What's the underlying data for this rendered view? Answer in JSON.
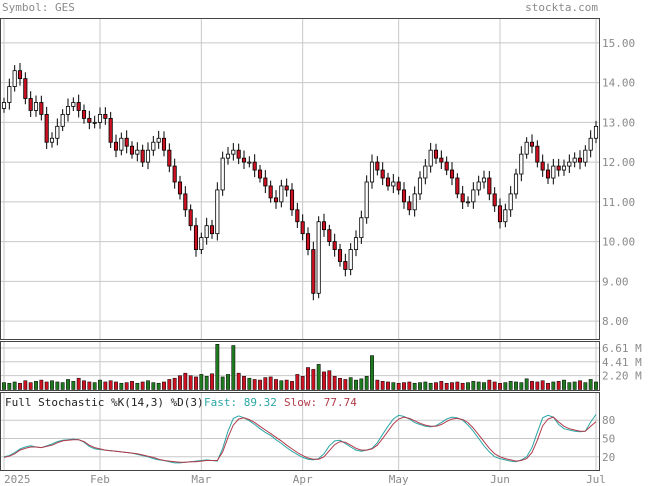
{
  "header": {
    "symbol_text": "Symbol: GES",
    "brand": "stockta.com"
  },
  "colors": {
    "up": "#ffffff",
    "down": "#cc1122",
    "vol_up": "#1f7a1f",
    "vol_down": "#cc1122",
    "grid": "#c8c8c8",
    "label": "#8a8a8a",
    "fast": "#2aa6a6",
    "slow": "#b23a4a",
    "text": "#222222"
  },
  "chart_data": [
    {
      "type": "candlestick",
      "title": "Symbol: GES",
      "x_labels": [
        "Jan 2025",
        "Feb",
        "Mar",
        "Apr",
        "May",
        "Jun",
        "Jul"
      ],
      "y_ticks": [
        "15.00",
        "14.00",
        "13.00",
        "12.00",
        "11.00",
        "10.00",
        "9.00",
        "8.00"
      ],
      "y_range": [
        7.55,
        15.6
      ],
      "grid": true,
      "closes": [
        13.5,
        13.9,
        14.3,
        14.1,
        13.6,
        13.3,
        13.5,
        13.2,
        12.5,
        12.6,
        12.9,
        13.2,
        13.4,
        13.5,
        13.3,
        13.1,
        13.0,
        13.0,
        13.2,
        13.1,
        12.5,
        12.3,
        12.6,
        12.4,
        12.2,
        12.3,
        12.0,
        12.3,
        12.5,
        12.6,
        12.3,
        11.9,
        11.5,
        11.2,
        10.8,
        10.4,
        9.8,
        10.1,
        10.4,
        10.2,
        11.3,
        12.1,
        12.2,
        12.3,
        12.1,
        12.0,
        12.0,
        11.8,
        11.6,
        11.4,
        11.1,
        11.0,
        11.4,
        11.3,
        10.8,
        10.5,
        10.2,
        9.8,
        8.7,
        10.5,
        10.3,
        10.0,
        9.8,
        9.5,
        9.3,
        9.8,
        10.1,
        10.6,
        11.5,
        12.0,
        11.8,
        11.6,
        11.4,
        11.5,
        11.3,
        11.0,
        10.8,
        11.2,
        11.6,
        11.9,
        12.3,
        12.1,
        12.0,
        11.8,
        11.6,
        11.2,
        11.0,
        11.0,
        11.3,
        11.5,
        11.6,
        11.2,
        10.9,
        10.5,
        10.8,
        11.2,
        11.7,
        12.2,
        12.5,
        12.4,
        12.0,
        11.8,
        11.6,
        11.9,
        11.8,
        11.9,
        12.0,
        12.1,
        12.0,
        12.3,
        12.6,
        12.9
      ]
    },
    {
      "type": "bar",
      "title": "",
      "y_ticks": [
        "6.61 M",
        "4.41 M",
        "2.20 M"
      ],
      "y_values_m": [
        6.61,
        4.41,
        2.2
      ],
      "grid": true,
      "volumes_m": [
        1.1,
        1.0,
        1.2,
        1.0,
        1.4,
        1.1,
        1.3,
        1.5,
        1.2,
        1.4,
        1.2,
        1.1,
        1.6,
        1.3,
        1.8,
        1.4,
        1.2,
        1.1,
        1.5,
        1.2,
        1.4,
        1.2,
        1.0,
        1.1,
        1.3,
        1.0,
        1.2,
        1.4,
        1.1,
        1.0,
        1.2,
        1.6,
        1.8,
        2.2,
        2.6,
        2.2,
        2.0,
        2.4,
        2.1,
        2.5,
        7.2,
        2.0,
        2.4,
        7.0,
        2.6,
        2.1,
        1.8,
        1.6,
        1.5,
        1.9,
        2.0,
        1.6,
        1.4,
        1.5,
        1.3,
        2.4,
        2.1,
        3.5,
        3.2,
        4.0,
        2.8,
        3.0,
        2.1,
        1.8,
        1.6,
        1.9,
        1.5,
        1.7,
        2.1,
        5.4,
        1.5,
        1.3,
        1.2,
        1.1,
        1.0,
        1.1,
        1.2,
        1.0,
        1.1,
        1.2,
        1.0,
        1.1,
        1.3,
        1.0,
        1.1,
        1.2,
        1.0,
        1.1,
        1.3,
        1.2,
        1.1,
        1.5,
        1.2,
        1.0,
        1.1,
        1.3,
        1.2,
        1.1,
        1.7,
        1.3,
        1.2,
        1.4,
        1.0,
        1.2,
        1.3,
        1.5,
        1.1,
        1.2,
        1.4,
        1.1,
        1.6,
        1.2
      ]
    },
    {
      "type": "line",
      "title": "Full Stochastic %K(14,3) %D(3)",
      "fast_label": "Fast: 89.32",
      "slow_label": "Slow: 77.74",
      "y_ticks": [
        "80",
        "50",
        "20"
      ],
      "ylim": [
        0,
        100
      ],
      "series": [
        {
          "name": "Fast",
          "values": [
            20,
            22,
            27,
            33,
            36,
            38,
            36,
            35,
            38,
            41,
            45,
            47,
            48,
            49,
            48,
            44,
            37,
            33,
            32,
            31,
            30,
            29,
            28,
            27,
            26,
            24,
            22,
            20,
            17,
            15,
            14,
            12,
            10,
            10,
            11,
            12,
            13,
            14,
            15,
            14,
            13,
            34,
            62,
            83,
            87,
            84,
            79,
            73,
            66,
            60,
            55,
            48,
            42,
            35,
            29,
            24,
            19,
            16,
            15,
            17,
            25,
            38,
            46,
            47,
            42,
            36,
            31,
            29,
            31,
            34,
            43,
            57,
            70,
            82,
            88,
            86,
            82,
            76,
            73,
            70,
            69,
            71,
            76,
            82,
            85,
            84,
            80,
            72,
            62,
            50,
            38,
            28,
            20,
            17,
            15,
            13,
            12,
            15,
            20,
            35,
            60,
            84,
            88,
            85,
            73,
            66,
            64,
            62,
            61,
            62,
            77,
            89.32
          ]
        },
        {
          "name": "Slow",
          "values": [
            19,
            21,
            25,
            31,
            34,
            36,
            36,
            35,
            37,
            39,
            43,
            46,
            47,
            48,
            48,
            45,
            39,
            35,
            33,
            31,
            30,
            29,
            28,
            27,
            26,
            25,
            23,
            21,
            19,
            16,
            14,
            13,
            12,
            11,
            11,
            12,
            12,
            13,
            14,
            14,
            14,
            28,
            52,
            72,
            82,
            84,
            81,
            76,
            70,
            64,
            58,
            52,
            46,
            39,
            33,
            27,
            22,
            18,
            16,
            16,
            20,
            30,
            40,
            45,
            44,
            39,
            34,
            31,
            31,
            33,
            39,
            50,
            62,
            74,
            82,
            85,
            83,
            79,
            75,
            72,
            70,
            70,
            73,
            78,
            82,
            83,
            81,
            76,
            67,
            56,
            45,
            34,
            25,
            20,
            17,
            15,
            13,
            14,
            17,
            27,
            47,
            71,
            82,
            85,
            77,
            70,
            66,
            64,
            62,
            62,
            70,
            77.74
          ]
        }
      ]
    }
  ]
}
